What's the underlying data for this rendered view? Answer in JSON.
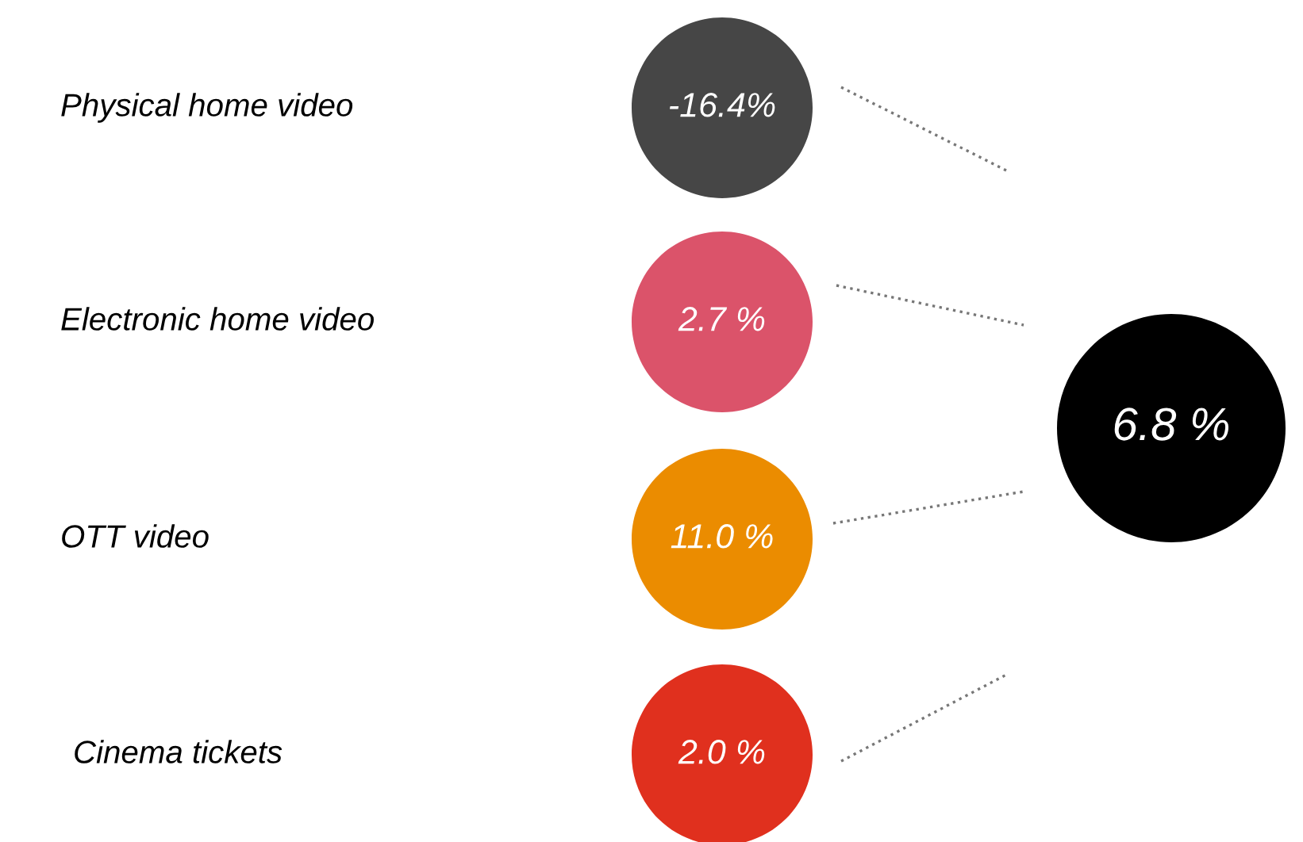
{
  "chart_data": {
    "type": "other",
    "categories": [
      "Physical home video",
      "Electronic home video",
      "OTT video",
      "Cinema tickets"
    ],
    "values": [
      -16.4,
      2.7,
      11.0,
      2.0
    ],
    "value_labels": [
      "-16.4%",
      "2.7 %",
      "11.0 %",
      "2.0 %"
    ],
    "colors": [
      "#464646",
      "#db536a",
      "#eb8c00",
      "#e0301e"
    ],
    "annotations": [
      "6.8 %"
    ]
  }
}
